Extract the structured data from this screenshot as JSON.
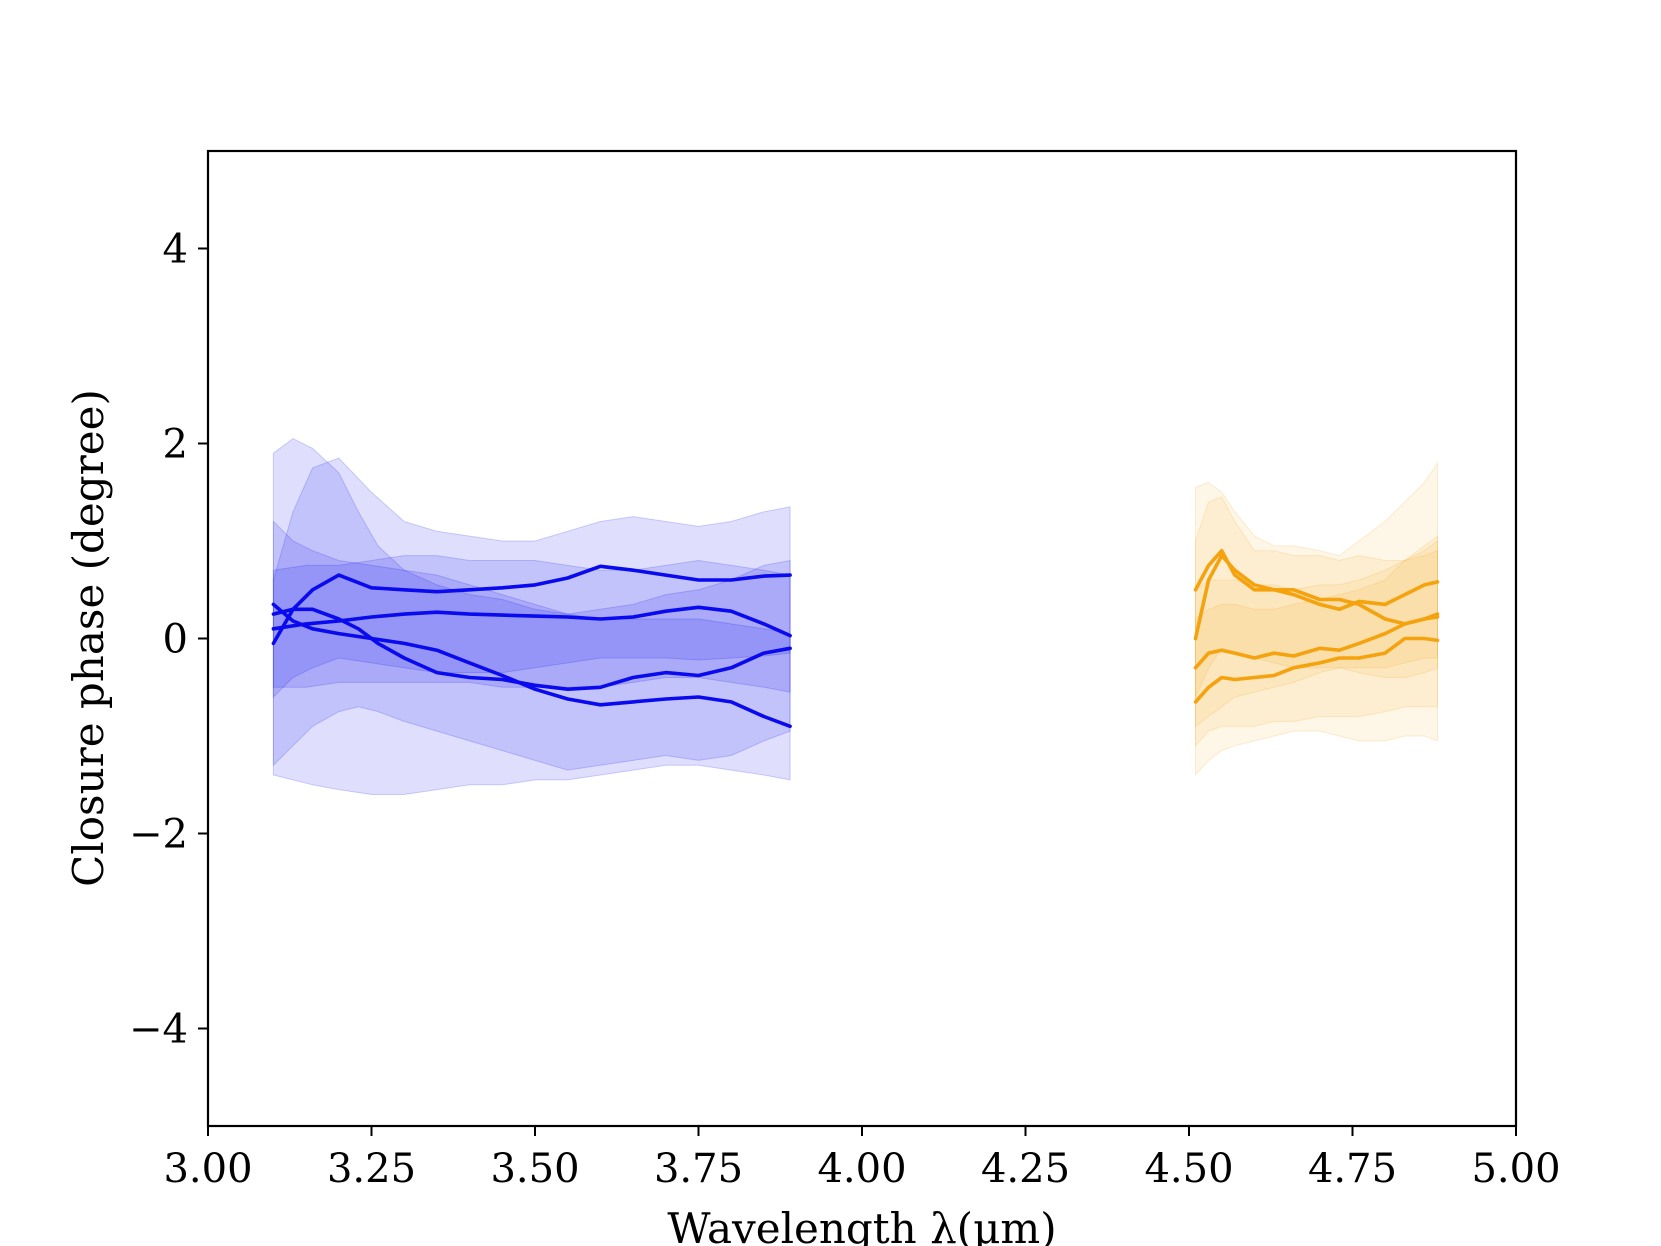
{
  "chart_data": {
    "type": "line",
    "xlabel": "Wavelength λ(μm)",
    "ylabel": "Closure phase (degree)",
    "xlim": [
      3.0,
      5.0
    ],
    "ylim": [
      -5,
      5
    ],
    "xticks": [
      3.0,
      3.25,
      3.5,
      3.75,
      4.0,
      4.25,
      4.5,
      4.75,
      5.0
    ],
    "xtick_labels": [
      "3.00",
      "3.25",
      "3.50",
      "3.75",
      "4.00",
      "4.25",
      "4.50",
      "4.75",
      "5.00"
    ],
    "yticks": [
      -4,
      -2,
      0,
      2,
      4
    ],
    "ytick_labels": [
      "−4",
      "−2",
      "0",
      "2",
      "4"
    ],
    "grid": false,
    "colors": {
      "L": "#0a0aee",
      "M": "#f5a20f"
    },
    "series": [
      {
        "band": "L",
        "x": [
          3.1,
          3.13,
          3.16,
          3.2,
          3.25,
          3.3,
          3.35,
          3.4,
          3.45,
          3.5,
          3.55,
          3.6,
          3.65,
          3.7,
          3.75,
          3.8,
          3.85,
          3.89
        ],
        "y": [
          -0.05,
          0.3,
          0.5,
          0.65,
          0.52,
          0.5,
          0.48,
          0.5,
          0.52,
          0.55,
          0.62,
          0.74,
          0.7,
          0.65,
          0.6,
          0.6,
          0.64,
          0.65
        ],
        "lower": [
          -0.6,
          -0.4,
          -0.3,
          -0.2,
          -0.25,
          -0.3,
          -0.35,
          -0.35,
          -0.35,
          -0.3,
          -0.25,
          -0.2,
          -0.2,
          -0.2,
          -0.22,
          -0.2,
          -0.18,
          -0.15
        ],
        "upper": [
          0.6,
          1.3,
          1.75,
          1.85,
          1.5,
          1.2,
          1.1,
          1.05,
          1.0,
          1.0,
          1.1,
          1.2,
          1.25,
          1.2,
          1.15,
          1.2,
          1.3,
          1.35
        ]
      },
      {
        "band": "L",
        "x": [
          3.1,
          3.15,
          3.2,
          3.25,
          3.3,
          3.35,
          3.4,
          3.45,
          3.5,
          3.55,
          3.6,
          3.65,
          3.7,
          3.75,
          3.8,
          3.85,
          3.89
        ],
        "y": [
          0.1,
          0.15,
          0.18,
          0.22,
          0.25,
          0.27,
          0.25,
          0.24,
          0.23,
          0.22,
          0.2,
          0.22,
          0.28,
          0.32,
          0.28,
          0.15,
          0.03
        ],
        "lower": [
          -0.5,
          -0.5,
          -0.45,
          -0.45,
          -0.45,
          -0.45,
          -0.45,
          -0.5,
          -0.5,
          -0.5,
          -0.5,
          -0.45,
          -0.4,
          -0.4,
          -0.45,
          -0.5,
          -0.55
        ],
        "upper": [
          0.7,
          0.75,
          0.75,
          0.8,
          0.85,
          0.85,
          0.8,
          0.8,
          0.8,
          0.75,
          0.7,
          0.7,
          0.75,
          0.8,
          0.75,
          0.7,
          0.65
        ]
      },
      {
        "band": "L",
        "x": [
          3.1,
          3.13,
          3.16,
          3.2,
          3.23,
          3.26,
          3.3,
          3.35,
          3.4,
          3.45,
          3.5,
          3.55,
          3.6,
          3.65,
          3.7,
          3.75,
          3.8,
          3.85,
          3.89
        ],
        "y": [
          0.25,
          0.3,
          0.3,
          0.2,
          0.1,
          -0.05,
          -0.2,
          -0.35,
          -0.4,
          -0.42,
          -0.48,
          -0.52,
          -0.5,
          -0.4,
          -0.35,
          -0.38,
          -0.3,
          -0.15,
          -0.1
        ],
        "lower": [
          -1.3,
          -1.1,
          -0.9,
          -0.75,
          -0.7,
          -0.75,
          -0.85,
          -0.95,
          -1.05,
          -1.15,
          -1.25,
          -1.35,
          -1.3,
          -1.25,
          -1.2,
          -1.25,
          -1.2,
          -1.05,
          -0.95
        ],
        "upper": [
          1.9,
          2.05,
          1.95,
          1.7,
          1.3,
          0.95,
          0.7,
          0.55,
          0.45,
          0.4,
          0.3,
          0.25,
          0.3,
          0.35,
          0.45,
          0.5,
          0.6,
          0.75,
          0.8
        ]
      },
      {
        "band": "L",
        "x": [
          3.1,
          3.13,
          3.16,
          3.2,
          3.25,
          3.3,
          3.35,
          3.4,
          3.45,
          3.5,
          3.55,
          3.6,
          3.65,
          3.7,
          3.75,
          3.8,
          3.85,
          3.89
        ],
        "y": [
          0.35,
          0.18,
          0.1,
          0.05,
          0.0,
          -0.05,
          -0.12,
          -0.25,
          -0.38,
          -0.52,
          -0.62,
          -0.68,
          -0.65,
          -0.62,
          -0.6,
          -0.65,
          -0.8,
          -0.9
        ],
        "lower": [
          -1.4,
          -1.45,
          -1.5,
          -1.55,
          -1.6,
          -1.6,
          -1.55,
          -1.5,
          -1.5,
          -1.45,
          -1.45,
          -1.4,
          -1.35,
          -1.3,
          -1.3,
          -1.35,
          -1.4,
          -1.45
        ],
        "upper": [
          1.2,
          1.0,
          0.9,
          0.8,
          0.75,
          0.7,
          0.65,
          0.55,
          0.45,
          0.35,
          0.25,
          0.2,
          0.2,
          0.2,
          0.2,
          0.15,
          0.1,
          0.05
        ]
      },
      {
        "band": "M",
        "x": [
          4.51,
          4.53,
          4.55,
          4.57,
          4.6,
          4.63,
          4.66,
          4.7,
          4.73,
          4.76,
          4.8,
          4.83,
          4.86,
          4.88
        ],
        "y": [
          0.5,
          0.75,
          0.9,
          0.65,
          0.5,
          0.5,
          0.45,
          0.35,
          0.3,
          0.38,
          0.35,
          0.45,
          0.55,
          0.58
        ],
        "lower": [
          -0.9,
          -0.8,
          -0.7,
          -0.6,
          -0.55,
          -0.5,
          -0.45,
          -0.35,
          -0.3,
          -0.3,
          -0.3,
          -0.25,
          -0.2,
          -0.2
        ],
        "upper": [
          1.55,
          1.6,
          1.5,
          1.3,
          1.05,
          0.95,
          0.95,
          0.9,
          0.85,
          1.0,
          1.2,
          1.4,
          1.6,
          1.8
        ]
      },
      {
        "band": "M",
        "x": [
          4.51,
          4.53,
          4.55,
          4.57,
          4.6,
          4.63,
          4.66,
          4.7,
          4.73,
          4.76,
          4.8,
          4.83,
          4.86,
          4.88
        ],
        "y": [
          0.0,
          0.6,
          0.85,
          0.7,
          0.55,
          0.5,
          0.5,
          0.4,
          0.4,
          0.35,
          0.2,
          0.15,
          0.2,
          0.25
        ],
        "lower": [
          -0.6,
          -0.3,
          -0.1,
          -0.15,
          -0.2,
          -0.25,
          -0.3,
          -0.3,
          -0.3,
          -0.35,
          -0.4,
          -0.4,
          -0.35,
          -0.3
        ],
        "upper": [
          1.0,
          1.4,
          1.45,
          1.2,
          0.9,
          0.9,
          0.85,
          0.85,
          0.8,
          0.85,
          0.8,
          0.8,
          0.85,
          0.9
        ]
      },
      {
        "band": "M",
        "x": [
          4.51,
          4.53,
          4.55,
          4.57,
          4.6,
          4.63,
          4.66,
          4.7,
          4.73,
          4.76,
          4.8,
          4.83,
          4.86,
          4.88
        ],
        "y": [
          -0.3,
          -0.15,
          -0.12,
          -0.15,
          -0.2,
          -0.15,
          -0.18,
          -0.1,
          -0.12,
          -0.05,
          0.05,
          0.15,
          0.2,
          0.22
        ],
        "lower": [
          -1.1,
          -0.95,
          -0.9,
          -0.9,
          -0.9,
          -0.85,
          -0.85,
          -0.8,
          -0.8,
          -0.8,
          -0.75,
          -0.7,
          -0.7,
          -0.7
        ],
        "upper": [
          0.5,
          0.6,
          0.6,
          0.6,
          0.55,
          0.55,
          0.5,
          0.55,
          0.55,
          0.6,
          0.7,
          0.8,
          0.9,
          1.0
        ]
      },
      {
        "band": "M",
        "x": [
          4.51,
          4.53,
          4.55,
          4.57,
          4.6,
          4.63,
          4.66,
          4.7,
          4.73,
          4.76,
          4.8,
          4.83,
          4.86,
          4.88
        ],
        "y": [
          -0.65,
          -0.5,
          -0.4,
          -0.42,
          -0.4,
          -0.38,
          -0.3,
          -0.25,
          -0.2,
          -0.2,
          -0.15,
          0.0,
          0.0,
          -0.02
        ],
        "lower": [
          -1.4,
          -1.25,
          -1.15,
          -1.1,
          -1.05,
          -1.0,
          -0.95,
          -0.95,
          -1.0,
          -1.05,
          -1.05,
          -1.0,
          -1.0,
          -1.05
        ],
        "upper": [
          0.2,
          0.3,
          0.35,
          0.35,
          0.3,
          0.3,
          0.35,
          0.4,
          0.45,
          0.5,
          0.6,
          0.8,
          0.95,
          1.05
        ]
      }
    ]
  }
}
